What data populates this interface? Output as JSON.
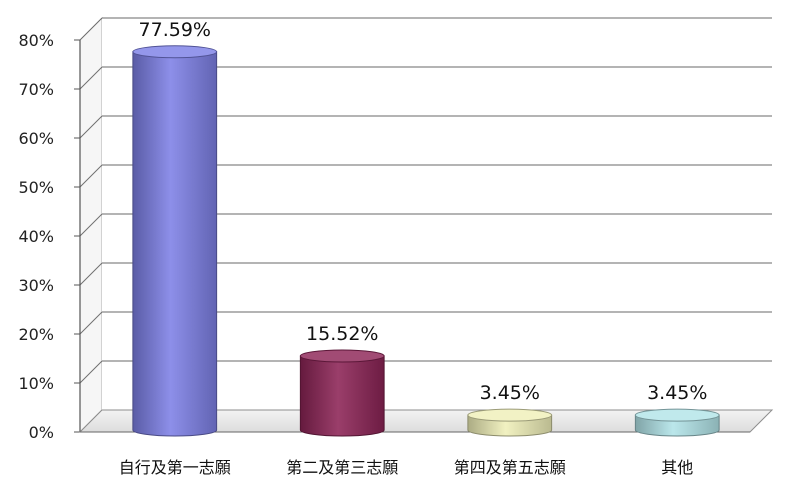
{
  "chart_data": {
    "type": "bar",
    "title": "",
    "xlabel": "",
    "ylabel": "",
    "ylim": [
      0,
      80
    ],
    "y_ticks": [
      "0%",
      "10%",
      "20%",
      "30%",
      "40%",
      "50%",
      "60%",
      "70%",
      "80%"
    ],
    "categories": [
      "自行及第一志願",
      "第二及第三志願",
      "第四及第五志願",
      "其他"
    ],
    "values": [
      77.59,
      15.52,
      3.45,
      3.45
    ],
    "data_labels": [
      "77.59%",
      "15.52%",
      "3.45%",
      "3.45%"
    ],
    "colors": [
      "#7d80e6",
      "#8c2456",
      "#efefb8",
      "#b2e4e8"
    ],
    "grid": true,
    "legend": "none",
    "style": "3d-cylinder"
  }
}
